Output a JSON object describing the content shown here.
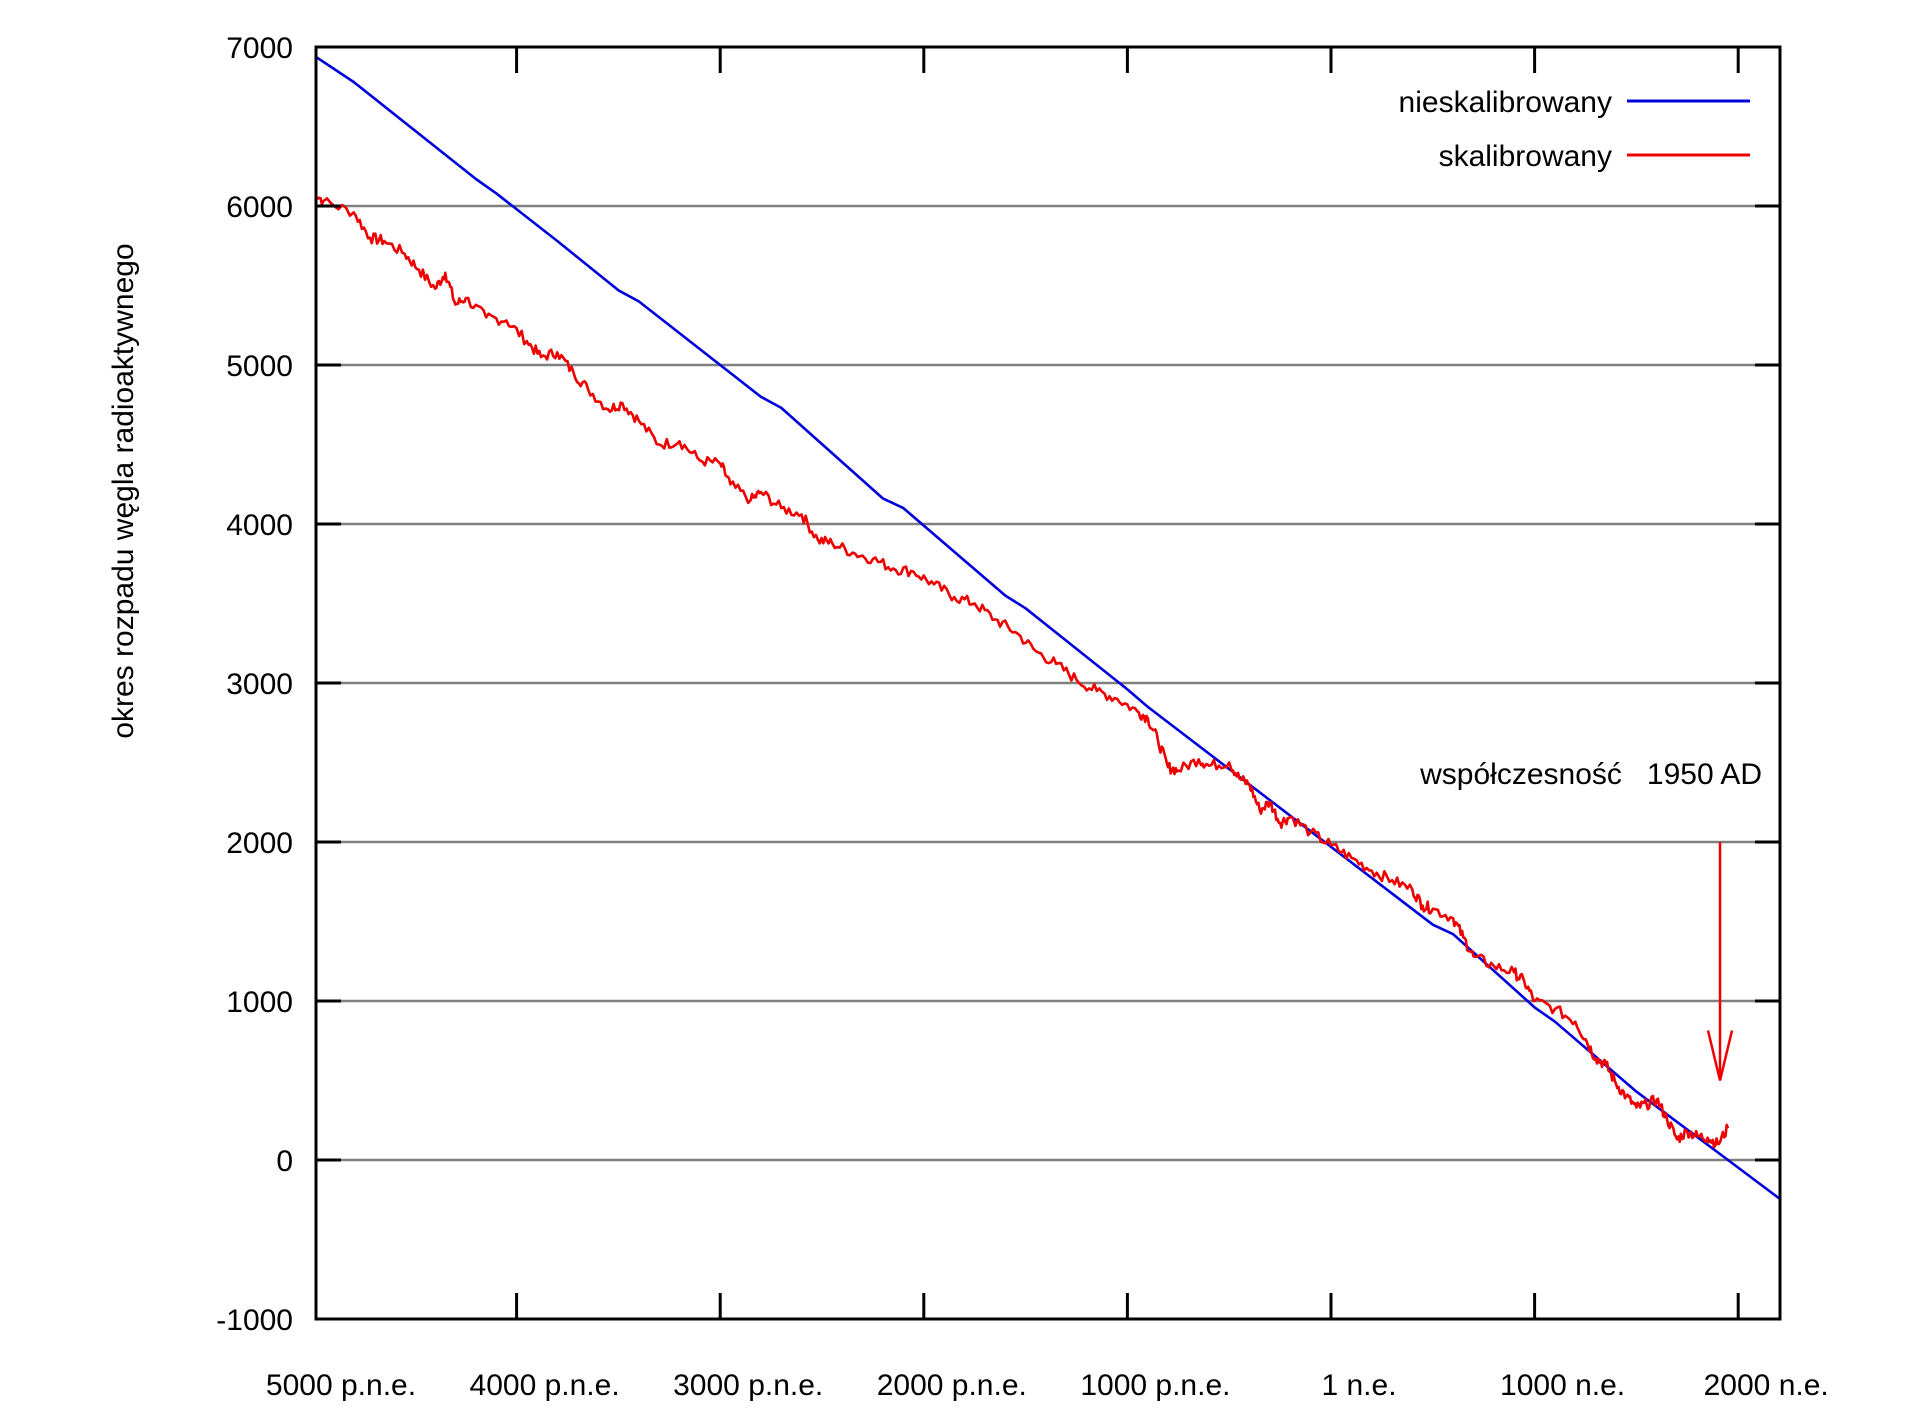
{
  "chart_data": {
    "type": "line",
    "title": "",
    "xlabel": "",
    "ylabel": "okres rozpadu węgla radioaktywnego",
    "ylim": [
      -1000,
      7000
    ],
    "xlim": [
      -5000,
      2210
    ],
    "grid": {
      "horizontal": true,
      "vertical": false
    },
    "legend_position": "top-right",
    "x_ticks": [
      {
        "value": -5000,
        "label": "5000 p.n.e."
      },
      {
        "value": -4000,
        "label": "4000 p.n.e."
      },
      {
        "value": -3000,
        "label": "3000 p.n.e."
      },
      {
        "value": -2000,
        "label": "2000 p.n.e."
      },
      {
        "value": -1000,
        "label": "1000 p.n.e."
      },
      {
        "value": 0,
        "label": "1 n.e."
      },
      {
        "value": 1000,
        "label": "1000 n.e."
      },
      {
        "value": 2000,
        "label": "2000 n.e."
      }
    ],
    "y_ticks": [
      {
        "value": 7000,
        "label": "7000"
      },
      {
        "value": 6000,
        "label": "6000"
      },
      {
        "value": 5000,
        "label": "5000"
      },
      {
        "value": 4000,
        "label": "4000"
      },
      {
        "value": 3000,
        "label": "3000"
      },
      {
        "value": 2000,
        "label": "2000"
      },
      {
        "value": 1000,
        "label": "1000"
      },
      {
        "value": 0,
        "label": "0"
      },
      {
        "value": -1000,
        "label": "-1000"
      }
    ],
    "series": [
      {
        "name": "nieskalibrowany",
        "color": "#0000dd",
        "x": [
          -5000,
          -4800,
          -4200,
          -4100,
          -3800,
          -3500,
          -3400,
          -2800,
          -2700,
          -2200,
          -2100,
          -1600,
          -1500,
          -1000,
          -900,
          0,
          500,
          600,
          1000,
          1100,
          1500,
          1950,
          2210
        ],
        "values": [
          6950,
          6780,
          6170,
          6080,
          5780,
          5470,
          5400,
          4800,
          4730,
          4160,
          4100,
          3550,
          3470,
          2960,
          2850,
          1970,
          1480,
          1420,
          960,
          870,
          430,
          0,
          -250
        ]
      },
      {
        "name": "skalibrowany",
        "color": "#ee0000",
        "x": [
          -5000,
          -4950,
          -4800,
          -4720,
          -4650,
          -4550,
          -4480,
          -4400,
          -4350,
          -4300,
          -4250,
          -4150,
          -4050,
          -3950,
          -3880,
          -3800,
          -3720,
          -3650,
          -3550,
          -3480,
          -3400,
          -3300,
          -3200,
          -3100,
          -3000,
          -2950,
          -2850,
          -2800,
          -2700,
          -2600,
          -2520,
          -2450,
          -2350,
          -2250,
          -2150,
          -2050,
          -1950,
          -1850,
          -1750,
          -1650,
          -1550,
          -1450,
          -1350,
          -1250,
          -1150,
          -1050,
          -950,
          -900,
          -850,
          -800,
          -750,
          -650,
          -600,
          -500,
          -450,
          -400,
          -350,
          -300,
          -250,
          -200,
          -100,
          0,
          100,
          200,
          300,
          400,
          450,
          500,
          600,
          650,
          700,
          800,
          900,
          950,
          1000,
          1100,
          1200,
          1250,
          1300,
          1350,
          1400,
          1450,
          1500,
          1550,
          1600,
          1650,
          1700,
          1750,
          1800,
          1850,
          1900,
          1950
        ],
        "values": [
          6100,
          6030,
          5960,
          5800,
          5780,
          5700,
          5600,
          5480,
          5580,
          5380,
          5420,
          5300,
          5280,
          5150,
          5050,
          5080,
          4950,
          4850,
          4720,
          4760,
          4650,
          4500,
          4520,
          4400,
          4380,
          4250,
          4150,
          4200,
          4100,
          4060,
          3900,
          3880,
          3820,
          3780,
          3720,
          3700,
          3620,
          3540,
          3500,
          3400,
          3320,
          3200,
          3120,
          3020,
          2950,
          2900,
          2820,
          2780,
          2640,
          2470,
          2450,
          2520,
          2480,
          2500,
          2400,
          2360,
          2200,
          2250,
          2120,
          2160,
          2060,
          1980,
          1900,
          1820,
          1760,
          1700,
          1600,
          1580,
          1520,
          1400,
          1280,
          1220,
          1180,
          1120,
          1000,
          950,
          870,
          760,
          640,
          600,
          480,
          400,
          330,
          350,
          380,
          260,
          130,
          180,
          150,
          140,
          100,
          200
        ]
      }
    ],
    "annotations": [
      {
        "text": "współczesność   1950 AD",
        "arrow_x": 1950,
        "arrow_from_y": 2000,
        "arrow_to_y": 500,
        "color": "#ee0000"
      }
    ]
  },
  "legend": {
    "items": [
      {
        "label": "nieskalibrowany",
        "color": "#0000dd"
      },
      {
        "label": "skalibrowany",
        "color": "#ee0000"
      }
    ]
  },
  "annotation": {
    "text": "współczesność   1950 AD"
  },
  "axis": {
    "ylabel": "okres rozpadu węgla radioaktywnego"
  }
}
